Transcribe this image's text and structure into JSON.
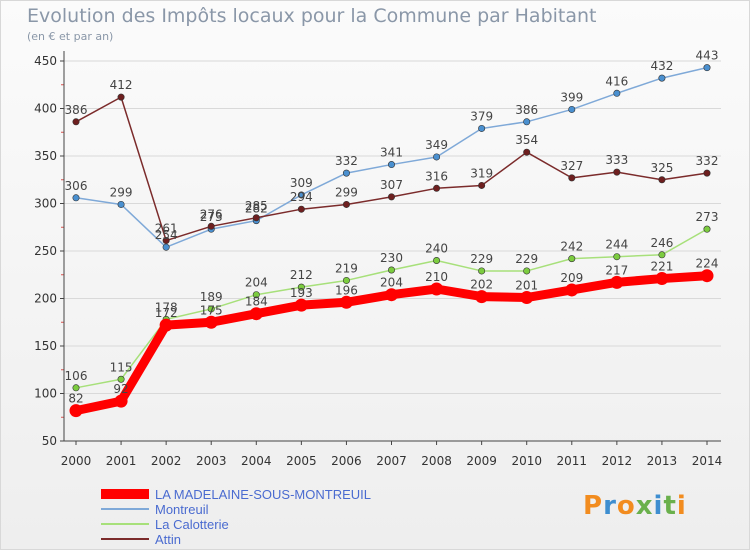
{
  "header": {
    "title": "Evolution des Impôts locaux pour la Commune par Habitant",
    "subtitle": "(en € et par an)"
  },
  "brand": {
    "logo_text": "Proxiti",
    "letter_colors": [
      "#f28c1f",
      "#3e8ed0",
      "#f28c1f",
      "#6ab04c",
      "#3e8ed0",
      "#6ab04c",
      "#f28c1f"
    ]
  },
  "colors": {
    "background": "#f2f2f2",
    "axis": "#444444",
    "grid": "#d9d9d9",
    "tick_label": "#333333",
    "value_label": "#444444",
    "legend_text": "#4a6bd0"
  },
  "chart_data": {
    "type": "line",
    "title": "Evolution des Impôts locaux pour la Commune par Habitant",
    "subtitle": "(en € et par an)",
    "x": [
      2000,
      2001,
      2002,
      2003,
      2004,
      2005,
      2006,
      2007,
      2008,
      2009,
      2010,
      2011,
      2012,
      2013,
      2014
    ],
    "x_tick_labels": [
      "2000",
      "2001",
      "2002",
      "2003",
      "2004",
      "2005",
      "2006",
      "2007",
      "2008",
      "2009",
      "2010",
      "2011",
      "2012",
      "2013",
      "2014"
    ],
    "y_ticks": [
      50,
      100,
      150,
      200,
      250,
      300,
      350,
      400,
      450
    ],
    "y_tick_labels": [
      "50",
      "100",
      "150",
      "200",
      "250",
      "300",
      "350",
      "400",
      "450"
    ],
    "ylim": [
      50,
      450
    ],
    "grid": "horizontal",
    "legend_position": "bottom-left",
    "series": [
      {
        "name": "LA MADELAINE-SOUS-MONTREUIL",
        "color": "#ff0000",
        "marker_color": "#ff0000",
        "line": "thick",
        "values": [
          82,
          92,
          172,
          175,
          184,
          193,
          196,
          204,
          210,
          202,
          201,
          209,
          217,
          221,
          224
        ],
        "labels": [
          "82",
          "92",
          "172",
          "175",
          "184",
          "193",
          "196",
          "204",
          "210",
          "202",
          "201",
          "209",
          "217",
          "221",
          "224"
        ]
      },
      {
        "name": "Montreuil",
        "color": "#7fa9d8",
        "marker_color": "#4a90d0",
        "line": "thin",
        "values": [
          306,
          299,
          254,
          273,
          282,
          309,
          332,
          341,
          349,
          379,
          386,
          399,
          416,
          432,
          443
        ],
        "labels": [
          "306",
          "299",
          "254",
          "273",
          "282",
          "309",
          "332",
          "341",
          "349",
          "379",
          "386",
          "399",
          "416",
          "432",
          "443"
        ]
      },
      {
        "name": "La Calotterie",
        "color": "#a7e07a",
        "marker_color": "#7ccc3f",
        "line": "thin",
        "values": [
          106,
          115,
          178,
          189,
          204,
          212,
          219,
          230,
          240,
          229,
          229,
          242,
          244,
          246,
          273
        ],
        "labels": [
          "106",
          "115",
          "178",
          "189",
          "204",
          "212",
          "219",
          "230",
          "240",
          "229",
          "229",
          "242",
          "244",
          "246",
          "273"
        ]
      },
      {
        "name": "Attin",
        "color": "#7b2b2b",
        "marker_color": "#6e1f1f",
        "line": "thin",
        "values": [
          386,
          412,
          261,
          276,
          285,
          294,
          299,
          307,
          316,
          319,
          354,
          327,
          333,
          325,
          332
        ],
        "labels": [
          "386",
          "412",
          "261",
          "276",
          "285",
          "294",
          "299",
          "307",
          "316",
          "319",
          "354",
          "327",
          "333",
          "325",
          "332"
        ]
      }
    ]
  }
}
